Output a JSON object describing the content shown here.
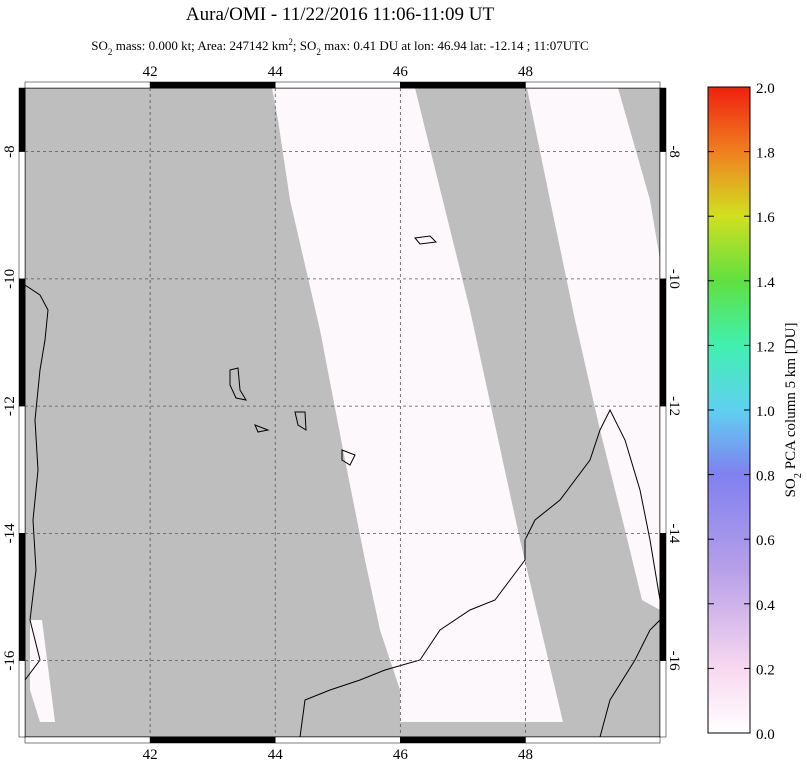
{
  "chart_data": {
    "type": "map",
    "title": "Aura/OMI - 11/22/2016 11:06-11:09 UT",
    "subtitle_parts": [
      {
        "text": "SO"
      },
      {
        "text": "2",
        "style": "sub"
      },
      {
        "text": " mass: 0.000 kt; Area: 247142 km"
      },
      {
        "text": "2",
        "style": "sup"
      },
      {
        "text": "; SO"
      },
      {
        "text": "2",
        "style": "sub"
      },
      {
        "text": " max: 0.41 DU at lon: 46.94 lat: -12.14 ; 11:07UTC"
      }
    ],
    "xlim": [
      40,
      50.15
    ],
    "ylim": [
      -17.2,
      -7
    ],
    "xticks": [
      42,
      44,
      46,
      48
    ],
    "yticks": [
      -8,
      -10,
      -12,
      -14,
      -16
    ],
    "grid": true,
    "colorbar": {
      "label_parts": [
        {
          "text": "SO"
        },
        {
          "text": "2",
          "style": "sub"
        },
        {
          "text": " PCA column 5 km [DU]"
        }
      ],
      "lim": [
        0,
        2
      ],
      "ticks": [
        {
          "value": 0,
          "label": "0.0"
        },
        {
          "value": 0.2,
          "label": "0.2"
        },
        {
          "value": 0.4,
          "label": "0.4"
        },
        {
          "value": 0.6,
          "label": "0.6"
        },
        {
          "value": 0.8,
          "label": "0.8"
        },
        {
          "value": 1,
          "label": "1.0"
        },
        {
          "value": 1.2,
          "label": "1.2"
        },
        {
          "value": 1.4,
          "label": "1.4"
        },
        {
          "value": 1.6,
          "label": "1.6"
        },
        {
          "value": 1.8,
          "label": "1.8"
        },
        {
          "value": 2,
          "label": "2.0"
        }
      ]
    }
  }
}
